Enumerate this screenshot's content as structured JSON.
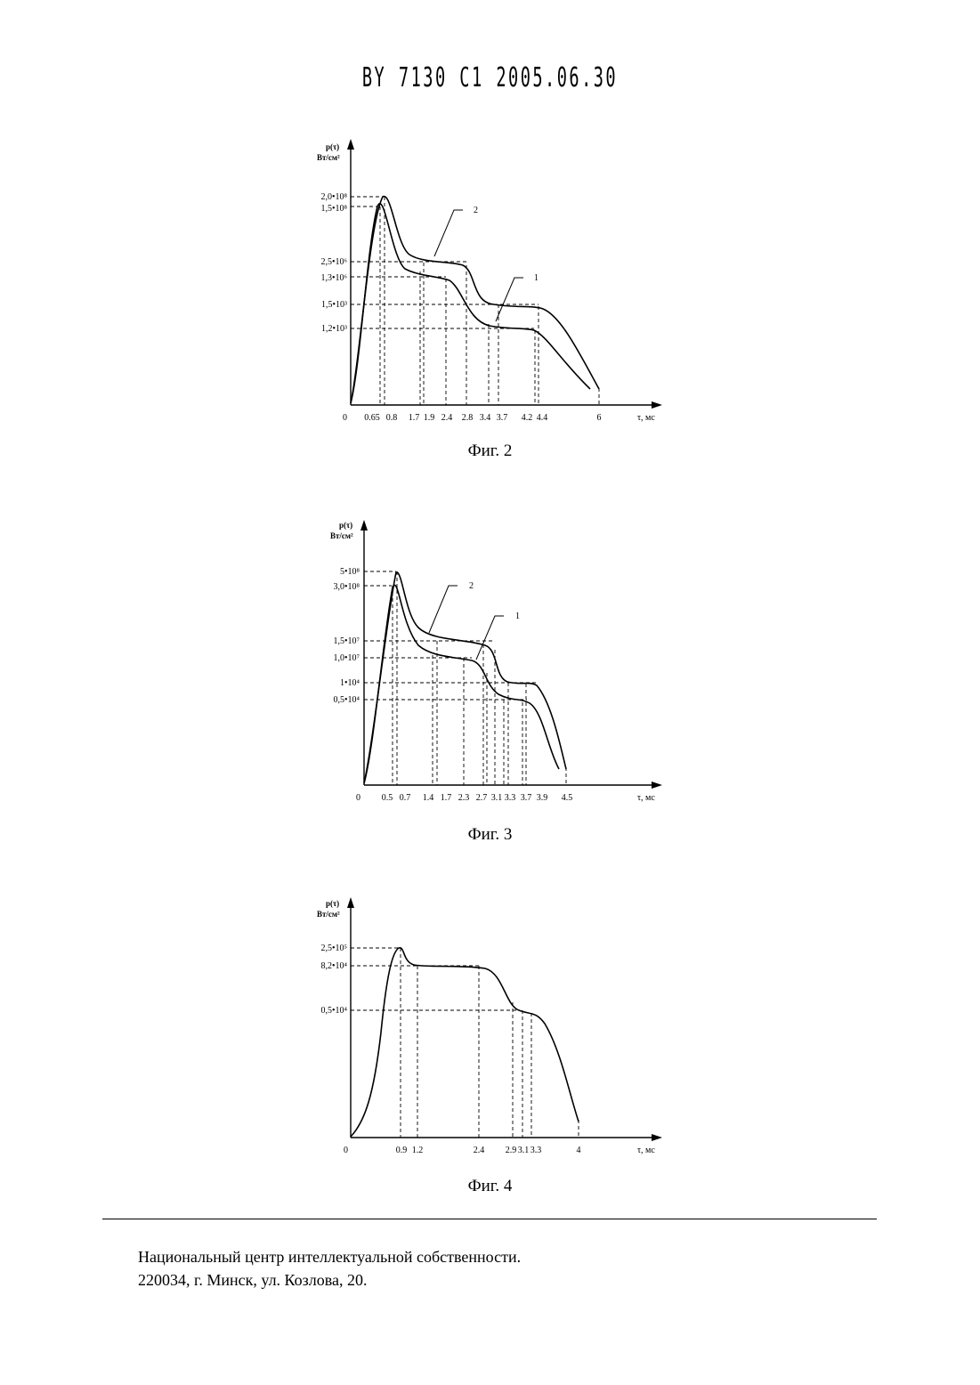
{
  "header": {
    "text": "BY 7130 C1 2005.06.30"
  },
  "figures": [
    {
      "caption": "Фиг. 2",
      "y_axis_label_1": "p(τ)",
      "y_axis_label_2": "Вт/см²",
      "x_axis_label": "τ, мс",
      "origin_label": "0",
      "x_ticks": [
        "0.65",
        "0.8",
        "1.7",
        "1.9",
        "2.4",
        "2.8",
        "3.4",
        "3.7",
        "4.2",
        "4.4",
        "6"
      ],
      "y_ticks": [
        "2,0•10⁸",
        "1,5•10⁸",
        "2,5•10⁶",
        "1,3•10⁶",
        "1,5•10³",
        "1,2•10³"
      ],
      "curve_labels": [
        "2",
        "1"
      ]
    },
    {
      "caption": "Фиг. 3",
      "y_axis_label_1": "p(τ)",
      "y_axis_label_2": "Вт/см²",
      "x_axis_label": "τ, мс",
      "origin_label": "0",
      "x_ticks": [
        "0.5",
        "0.7",
        "1.4",
        "1.7",
        "2.3",
        "2.7",
        "3.1",
        "3.3",
        "3.7",
        "3.9",
        "4.5"
      ],
      "y_ticks": [
        "5•10⁸",
        "3,0•10⁸",
        "1,5•10⁷",
        "1,0•10⁷",
        "1•10⁴",
        "0,5•10⁴"
      ],
      "curve_labels": [
        "2",
        "1"
      ]
    },
    {
      "caption": "Фиг. 4",
      "y_axis_label_1": "p(τ)",
      "y_axis_label_2": "Вт/см²",
      "x_axis_label": "τ, мс",
      "origin_label": "0",
      "x_ticks": [
        "0.9",
        "1.2",
        "2.4",
        "2.9",
        "3.1",
        "3.3",
        "4"
      ],
      "y_ticks": [
        "2,5•10⁵",
        "8,2•10⁴",
        "0,5•10⁴"
      ],
      "curve_labels": []
    }
  ],
  "footer": {
    "line1": "Национальный центр интеллектуальной собственности.",
    "line2": "220034, г. Минск, ул. Козлова, 20."
  }
}
